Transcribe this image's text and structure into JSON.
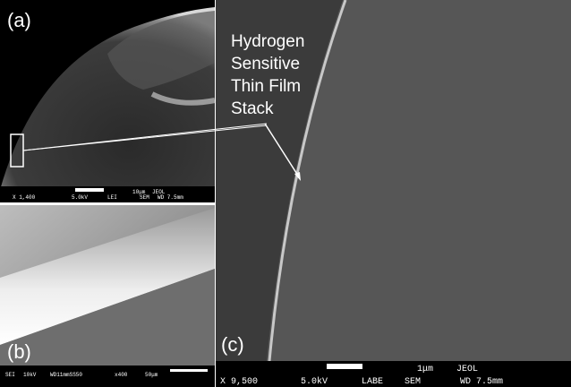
{
  "panels": [
    {
      "label": "(a)",
      "info": [
        "10μm",
        "JEOL",
        "X 1,400",
        "5.0kV",
        "LEI",
        "SEM",
        "WD 7.5mm"
      ]
    },
    {
      "label": "(b)",
      "info": [
        "SEI",
        "10kV",
        "WD11mmSS50",
        "x400",
        "50μm"
      ]
    },
    {
      "label": "(c)",
      "info": [
        "1μm",
        "JEOL",
        "X 9,500",
        "5.0kV",
        "LABE",
        "SEM",
        "WD 7.5mm"
      ]
    }
  ],
  "annotation": [
    "Hydrogen",
    "Sensitive",
    "Thin Film",
    "Stack"
  ]
}
